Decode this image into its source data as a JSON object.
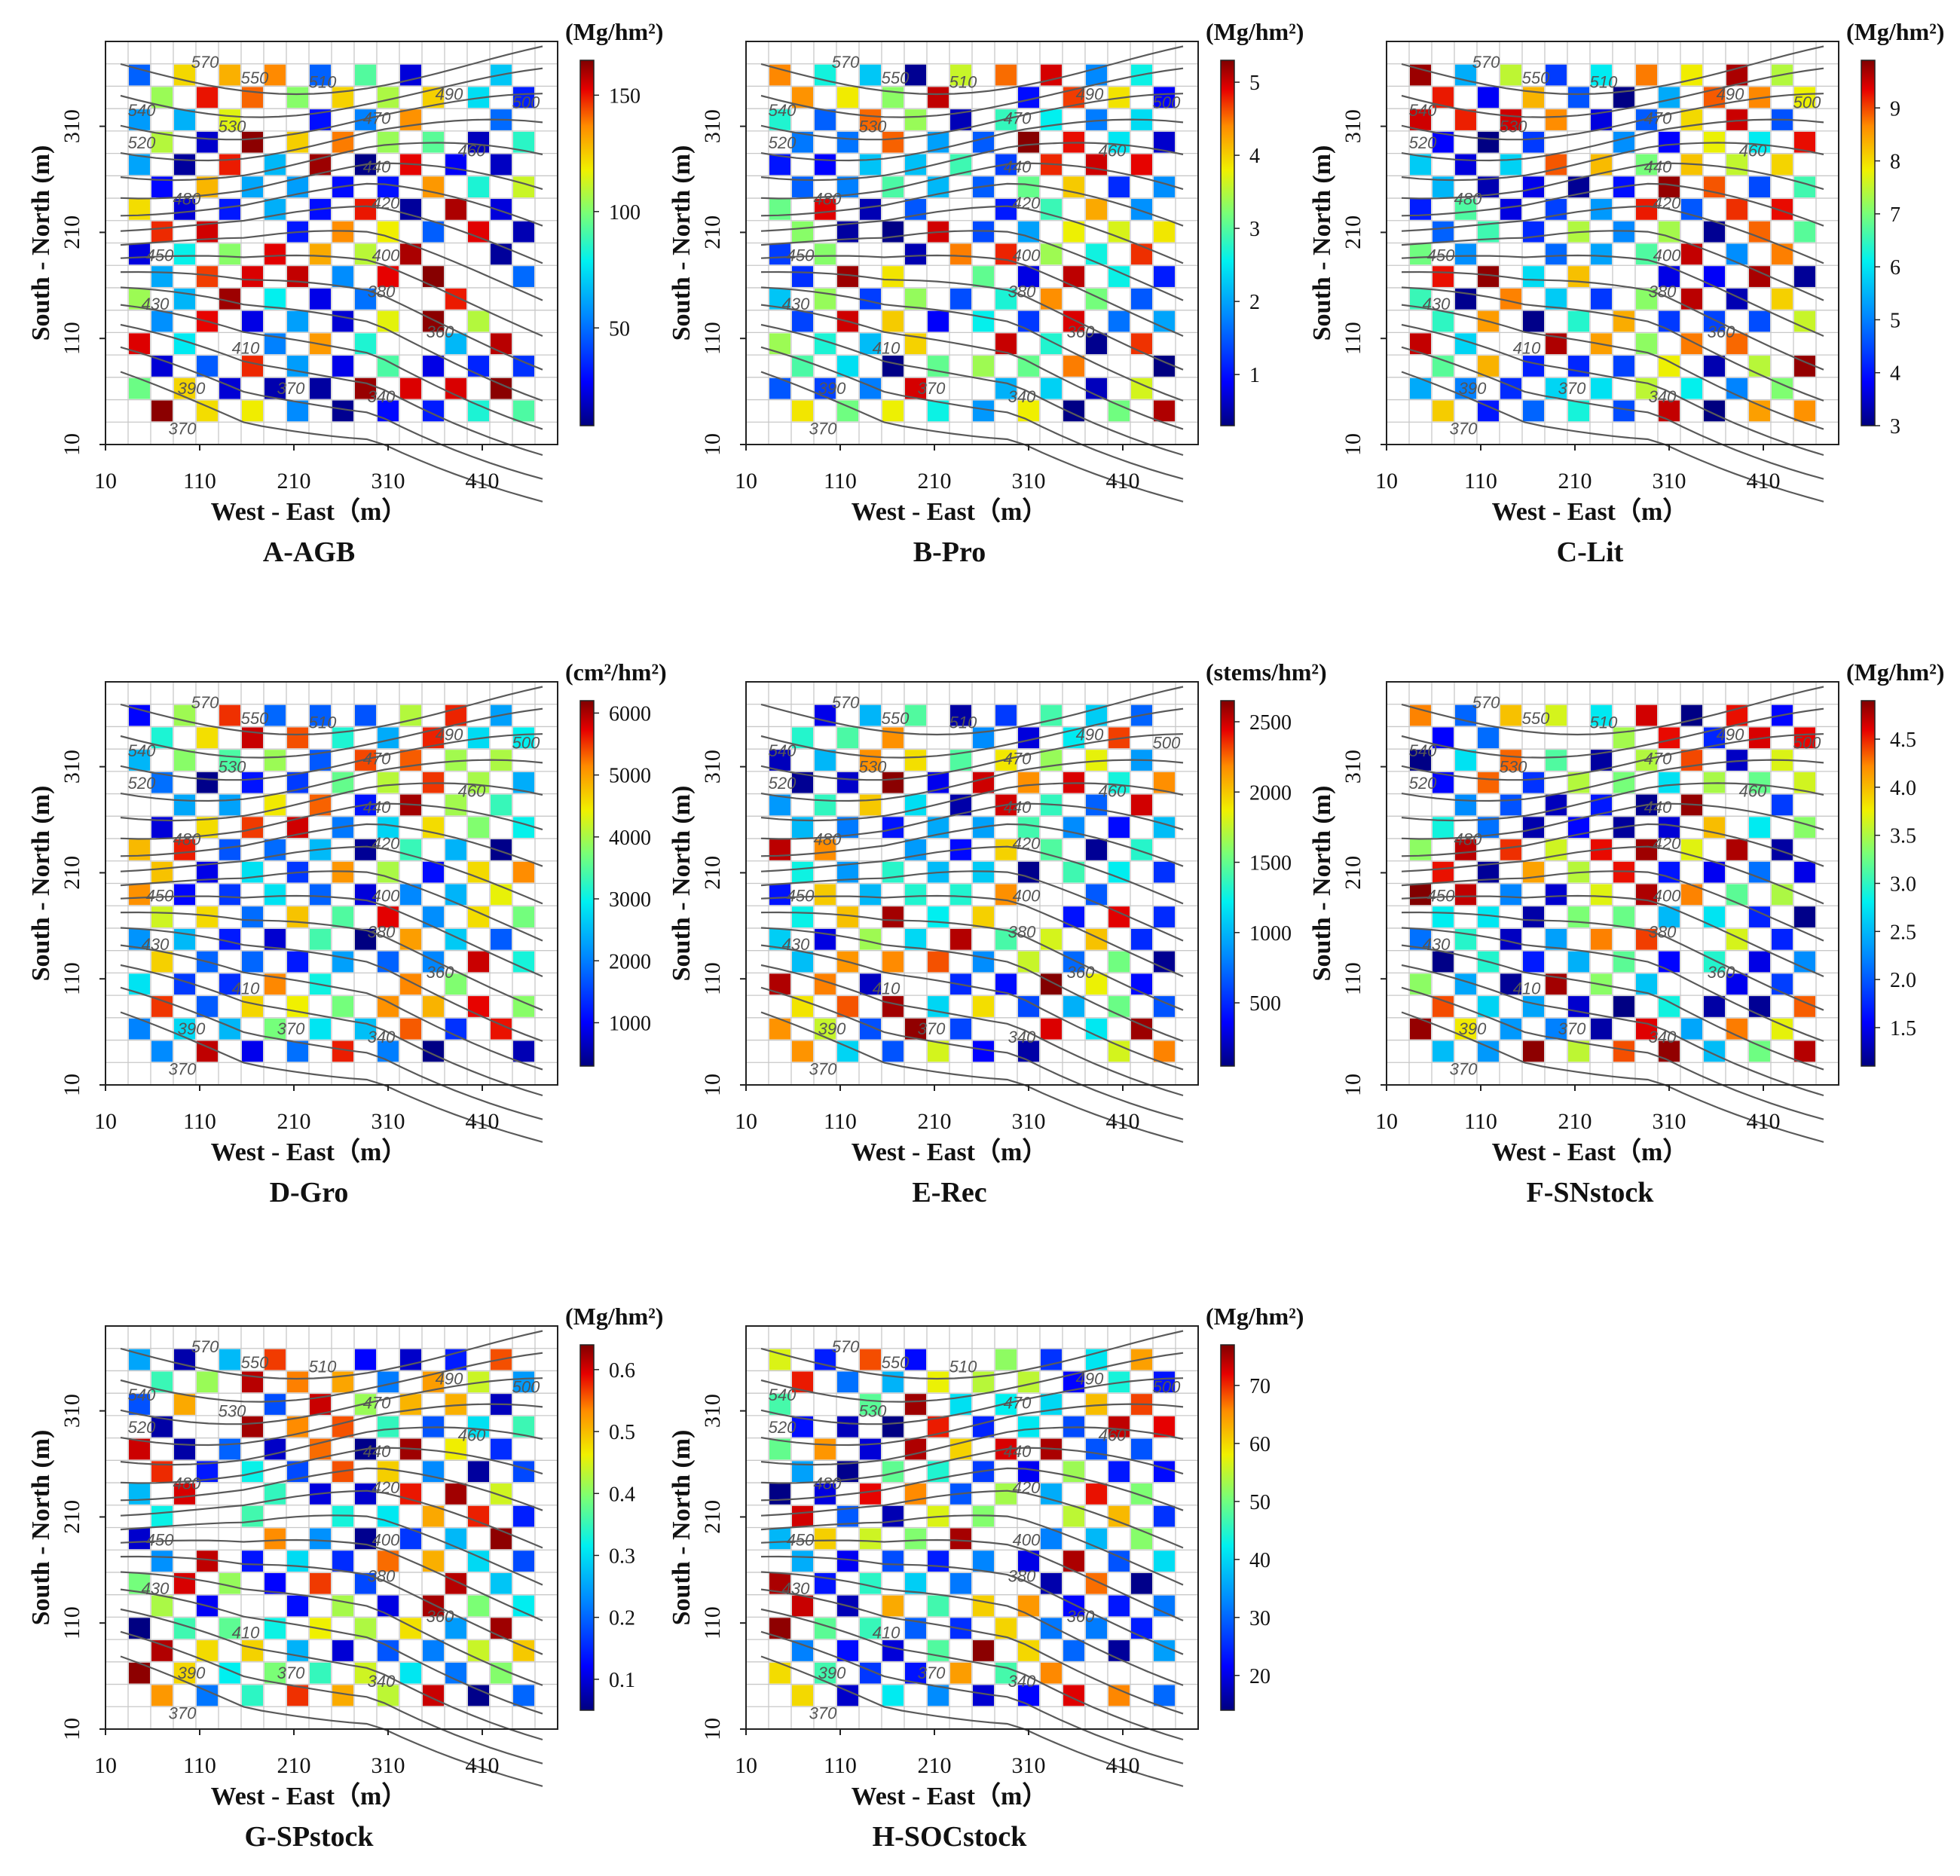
{
  "figure_title": "",
  "chart_data": [
    {
      "id": "A",
      "type": "heatmap",
      "title": "A-AGB",
      "unit": "(Mg/hm²)",
      "xlabel": "West - East（m）",
      "ylabel": "South - North (m)",
      "x_ticks": [
        "10",
        "110",
        "210",
        "310",
        "410"
      ],
      "y_ticks": [
        "10",
        "110",
        "210",
        "310"
      ],
      "colorbar_ticks": [
        "50",
        "100",
        "150"
      ],
      "value_range": [
        8,
        165
      ],
      "seed": 11,
      "contour_labels": [
        "570",
        "550",
        "540",
        "530",
        "520",
        "510",
        "500",
        "490",
        "480",
        "470",
        "460",
        "450",
        "440",
        "430",
        "420",
        "410",
        "400",
        "390",
        "380",
        "370",
        "370",
        "360",
        "340"
      ]
    },
    {
      "id": "B",
      "type": "heatmap",
      "title": "B-Pro",
      "unit": "(Mg/hm²)",
      "xlabel": "West - East（m）",
      "ylabel": "South - North (m)",
      "x_ticks": [
        "10",
        "110",
        "210",
        "310",
        "410"
      ],
      "y_ticks": [
        "10",
        "110",
        "210",
        "310"
      ],
      "colorbar_ticks": [
        "1",
        "2",
        "3",
        "4",
        "5"
      ],
      "value_range": [
        0.3,
        5.3
      ],
      "seed": 23,
      "contour_labels": [
        "570",
        "550",
        "540",
        "530",
        "520",
        "510",
        "500",
        "490",
        "480",
        "470",
        "460",
        "450",
        "440",
        "430",
        "420",
        "410",
        "400",
        "390",
        "380",
        "370",
        "370",
        "360",
        "340"
      ]
    },
    {
      "id": "C",
      "type": "heatmap",
      "title": "C-Lit",
      "unit": "(Mg/hm²)",
      "xlabel": "West - East（m）",
      "ylabel": "South - North (m)",
      "x_ticks": [
        "10",
        "110",
        "210",
        "310",
        "410"
      ],
      "y_ticks": [
        "10",
        "110",
        "210",
        "310"
      ],
      "colorbar_ticks": [
        "3",
        "4",
        "5",
        "6",
        "7",
        "8",
        "9"
      ],
      "value_range": [
        3,
        9.9
      ],
      "seed": 37,
      "contour_labels": [
        "570",
        "550",
        "540",
        "530",
        "520",
        "510",
        "500",
        "490",
        "480",
        "470",
        "460",
        "450",
        "440",
        "430",
        "420",
        "410",
        "400",
        "390",
        "380",
        "370",
        "370",
        "360",
        "340"
      ]
    },
    {
      "id": "D",
      "type": "heatmap",
      "title": "D-Gro",
      "unit": "(cm²/hm²)",
      "xlabel": "West - East（m）",
      "ylabel": "South - North (m)",
      "x_ticks": [
        "10",
        "110",
        "210",
        "310",
        "410"
      ],
      "y_ticks": [
        "10",
        "110",
        "210",
        "310"
      ],
      "colorbar_ticks": [
        "1000",
        "2000",
        "3000",
        "4000",
        "5000",
        "6000"
      ],
      "value_range": [
        300,
        6200
      ],
      "seed": 41,
      "contour_labels": [
        "570",
        "550",
        "540",
        "530",
        "520",
        "510",
        "500",
        "490",
        "480",
        "470",
        "460",
        "450",
        "440",
        "430",
        "420",
        "410",
        "400",
        "390",
        "380",
        "370",
        "370",
        "360",
        "340"
      ]
    },
    {
      "id": "E",
      "type": "heatmap",
      "title": "E-Rec",
      "unit": "(stems/hm²)",
      "xlabel": "West - East（m）",
      "ylabel": "South - North (m)",
      "x_ticks": [
        "10",
        "110",
        "210",
        "310",
        "410"
      ],
      "y_ticks": [
        "10",
        "110",
        "210",
        "310"
      ],
      "colorbar_ticks": [
        "500",
        "1000",
        "1500",
        "2000",
        "2500"
      ],
      "value_range": [
        50,
        2650
      ],
      "seed": 53,
      "contour_labels": [
        "570",
        "550",
        "540",
        "530",
        "520",
        "510",
        "500",
        "490",
        "480",
        "470",
        "460",
        "450",
        "440",
        "430",
        "420",
        "410",
        "400",
        "390",
        "380",
        "370",
        "370",
        "360",
        "340"
      ]
    },
    {
      "id": "F",
      "type": "heatmap",
      "title": "F-SNstock",
      "unit": "(Mg/hm²)",
      "xlabel": "West - East（m）",
      "ylabel": "South - North (m)",
      "x_ticks": [
        "10",
        "110",
        "210",
        "310",
        "410"
      ],
      "y_ticks": [
        "10",
        "110",
        "210",
        "310"
      ],
      "colorbar_ticks": [
        "1.5",
        "2.0",
        "2.5",
        "3.0",
        "3.5",
        "4.0",
        "4.5"
      ],
      "value_range": [
        1.1,
        4.9
      ],
      "seed": 67,
      "contour_labels": [
        "570",
        "550",
        "540",
        "530",
        "520",
        "510",
        "500",
        "490",
        "480",
        "470",
        "460",
        "450",
        "440",
        "430",
        "420",
        "410",
        "400",
        "390",
        "380",
        "370",
        "370",
        "360",
        "340"
      ]
    },
    {
      "id": "G",
      "type": "heatmap",
      "title": "G-SPstock",
      "unit": "(Mg/hm²)",
      "xlabel": "West - East（m）",
      "ylabel": "South - North (m)",
      "x_ticks": [
        "10",
        "110",
        "210",
        "310",
        "410"
      ],
      "y_ticks": [
        "10",
        "110",
        "210",
        "310"
      ],
      "colorbar_ticks": [
        "0.1",
        "0.2",
        "0.3",
        "0.4",
        "0.5",
        "0.6"
      ],
      "value_range": [
        0.05,
        0.64
      ],
      "seed": 79,
      "contour_labels": [
        "570",
        "550",
        "540",
        "530",
        "520",
        "510",
        "500",
        "490",
        "480",
        "470",
        "460",
        "450",
        "440",
        "430",
        "420",
        "410",
        "400",
        "390",
        "380",
        "370",
        "370",
        "360",
        "340"
      ]
    },
    {
      "id": "H",
      "type": "heatmap",
      "title": "H-SOCstock",
      "unit": "(Mg/hm²)",
      "xlabel": "West - East（m）",
      "ylabel": "South - North (m)",
      "x_ticks": [
        "10",
        "110",
        "210",
        "310",
        "410"
      ],
      "y_ticks": [
        "10",
        "110",
        "210",
        "310"
      ],
      "colorbar_ticks": [
        "20",
        "30",
        "40",
        "50",
        "60",
        "70"
      ],
      "value_range": [
        14,
        77
      ],
      "seed": 97,
      "contour_labels": [
        "570",
        "550",
        "540",
        "530",
        "520",
        "510",
        "500",
        "490",
        "480",
        "470",
        "460",
        "450",
        "440",
        "430",
        "420",
        "410",
        "400",
        "390",
        "380",
        "370",
        "370",
        "360",
        "340"
      ]
    }
  ]
}
